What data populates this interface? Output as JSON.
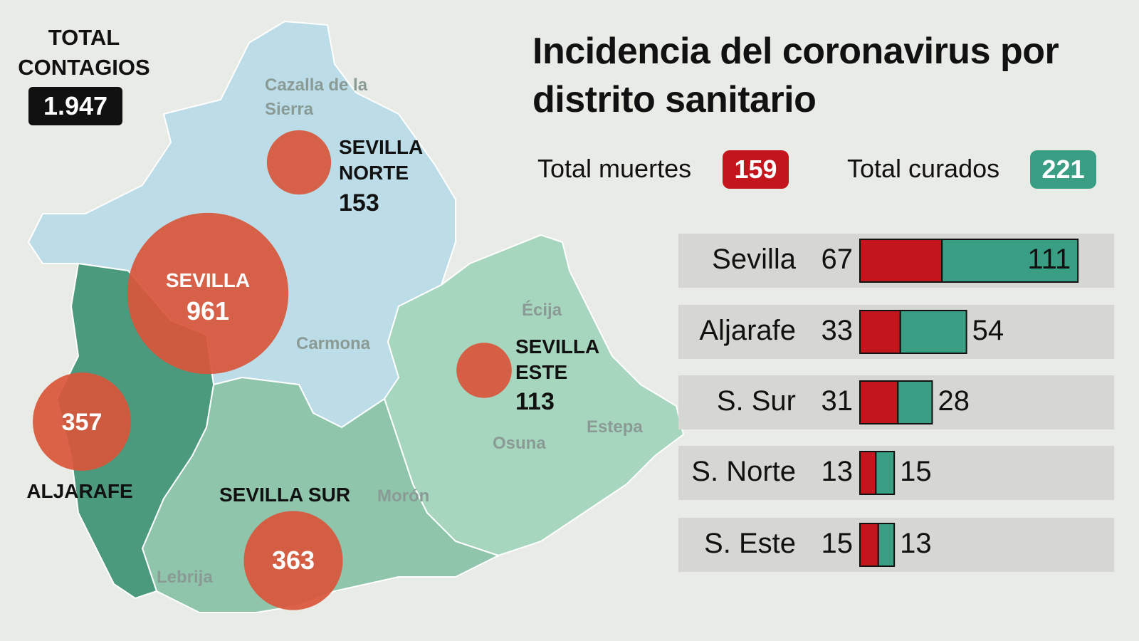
{
  "total": {
    "label": "TOTAL CONTAGIOS",
    "value": "1.947"
  },
  "title": "Incidencia del coronavirus por distrito sanitario",
  "map": {
    "places": [
      "Cazalla de la Sierra",
      "Carmona",
      "Écija",
      "Estepa",
      "Osuna",
      "Morón",
      "Lebrija"
    ]
  },
  "chart_data": [
    {
      "type": "bubble",
      "categories": [
        "SEVILLA NORTE",
        "SEVILLA",
        "ALJARAFE",
        "SEVILLA SUR",
        "SEVILLA ESTE"
      ],
      "values": [
        153,
        961,
        357,
        363,
        113
      ],
      "color": "#d9553a"
    },
    {
      "type": "bar",
      "stacked": true,
      "orientation": "horizontal",
      "categories": [
        "Sevilla",
        "Aljarafe",
        "S. Sur",
        "S. Norte",
        "S. Este"
      ],
      "series": [
        {
          "name": "Total muertes",
          "total": 159,
          "color": "#c3161c",
          "values": [
            67,
            33,
            31,
            13,
            15
          ]
        },
        {
          "name": "Total curados",
          "total": 221,
          "color": "#3a9e85",
          "values": [
            111,
            54,
            28,
            15,
            13
          ]
        }
      ]
    }
  ]
}
